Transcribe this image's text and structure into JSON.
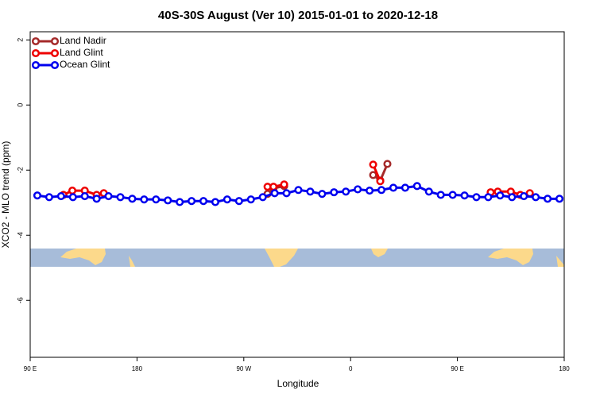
{
  "chart_data": {
    "type": "line",
    "title": "40S-30S August (Ver 10)   2015-01-01 to 2020-12-18",
    "x_label": "Longitude",
    "y_label": "XCO2 - MLO trend (ppm)",
    "xlim": [
      90,
      540
    ],
    "xticks": [
      {
        "value": 90,
        "label": "90 E"
      },
      180,
      {
        "value": 270,
        "label": "90 W"
      },
      {
        "value": 360,
        "label": "0"
      },
      {
        "value": 450,
        "label": "90 E"
      },
      {
        "value": 540,
        "label": "180"
      }
    ],
    "ylim": [
      -7.75,
      2.25
    ],
    "yticks": [
      2,
      0,
      -2,
      -4,
      -6
    ],
    "legend": "top-left",
    "series": [
      {
        "name": "Land Nadir",
        "color": "#a52a2a",
        "x": [
          290,
          295,
          304,
          340,
          379,
          385,
          391
        ],
        "values": [
          -2.73,
          -2.56,
          -2.49,
          null,
          -2.15,
          -2.32,
          -1.81
        ]
      },
      {
        "name": "Land Glint",
        "color": "#ee0000",
        "x": [
          118,
          125.5,
          136,
          146,
          152,
          220,
          290,
          295,
          304,
          340,
          379,
          385,
          430,
          478,
          484,
          495,
          503,
          511
        ],
        "values": [
          -2.76,
          -2.63,
          -2.63,
          -2.76,
          -2.71,
          null,
          -2.51,
          -2.51,
          -2.44,
          null,
          -1.83,
          -2.34,
          null,
          -2.68,
          -2.66,
          -2.66,
          -2.76,
          -2.71
        ]
      },
      {
        "name": "Ocean Glint",
        "color": "#0000ee",
        "x": [
          96,
          106,
          116,
          126,
          136,
          146,
          156,
          166,
          176,
          186,
          196,
          206,
          216,
          226,
          236,
          246,
          256,
          266,
          276,
          286,
          296,
          306,
          316,
          326,
          336,
          346,
          356,
          366,
          376,
          386,
          396,
          406,
          416,
          426,
          436,
          446,
          456,
          466,
          476,
          486,
          496,
          506,
          516,
          526,
          536
        ],
        "values": [
          -2.78,
          -2.83,
          -2.8,
          -2.83,
          -2.8,
          -2.88,
          -2.8,
          -2.83,
          -2.88,
          -2.9,
          -2.9,
          -2.93,
          -2.98,
          -2.95,
          -2.95,
          -2.98,
          -2.9,
          -2.95,
          -2.9,
          -2.83,
          -2.71,
          -2.71,
          -2.61,
          -2.66,
          -2.73,
          -2.68,
          -2.66,
          -2.59,
          -2.63,
          -2.61,
          -2.54,
          -2.54,
          -2.49,
          -2.66,
          -2.76,
          -2.76,
          -2.78,
          -2.83,
          -2.83,
          -2.78,
          -2.83,
          -2.8,
          -2.83,
          -2.88,
          -2.88
        ]
      }
    ]
  }
}
